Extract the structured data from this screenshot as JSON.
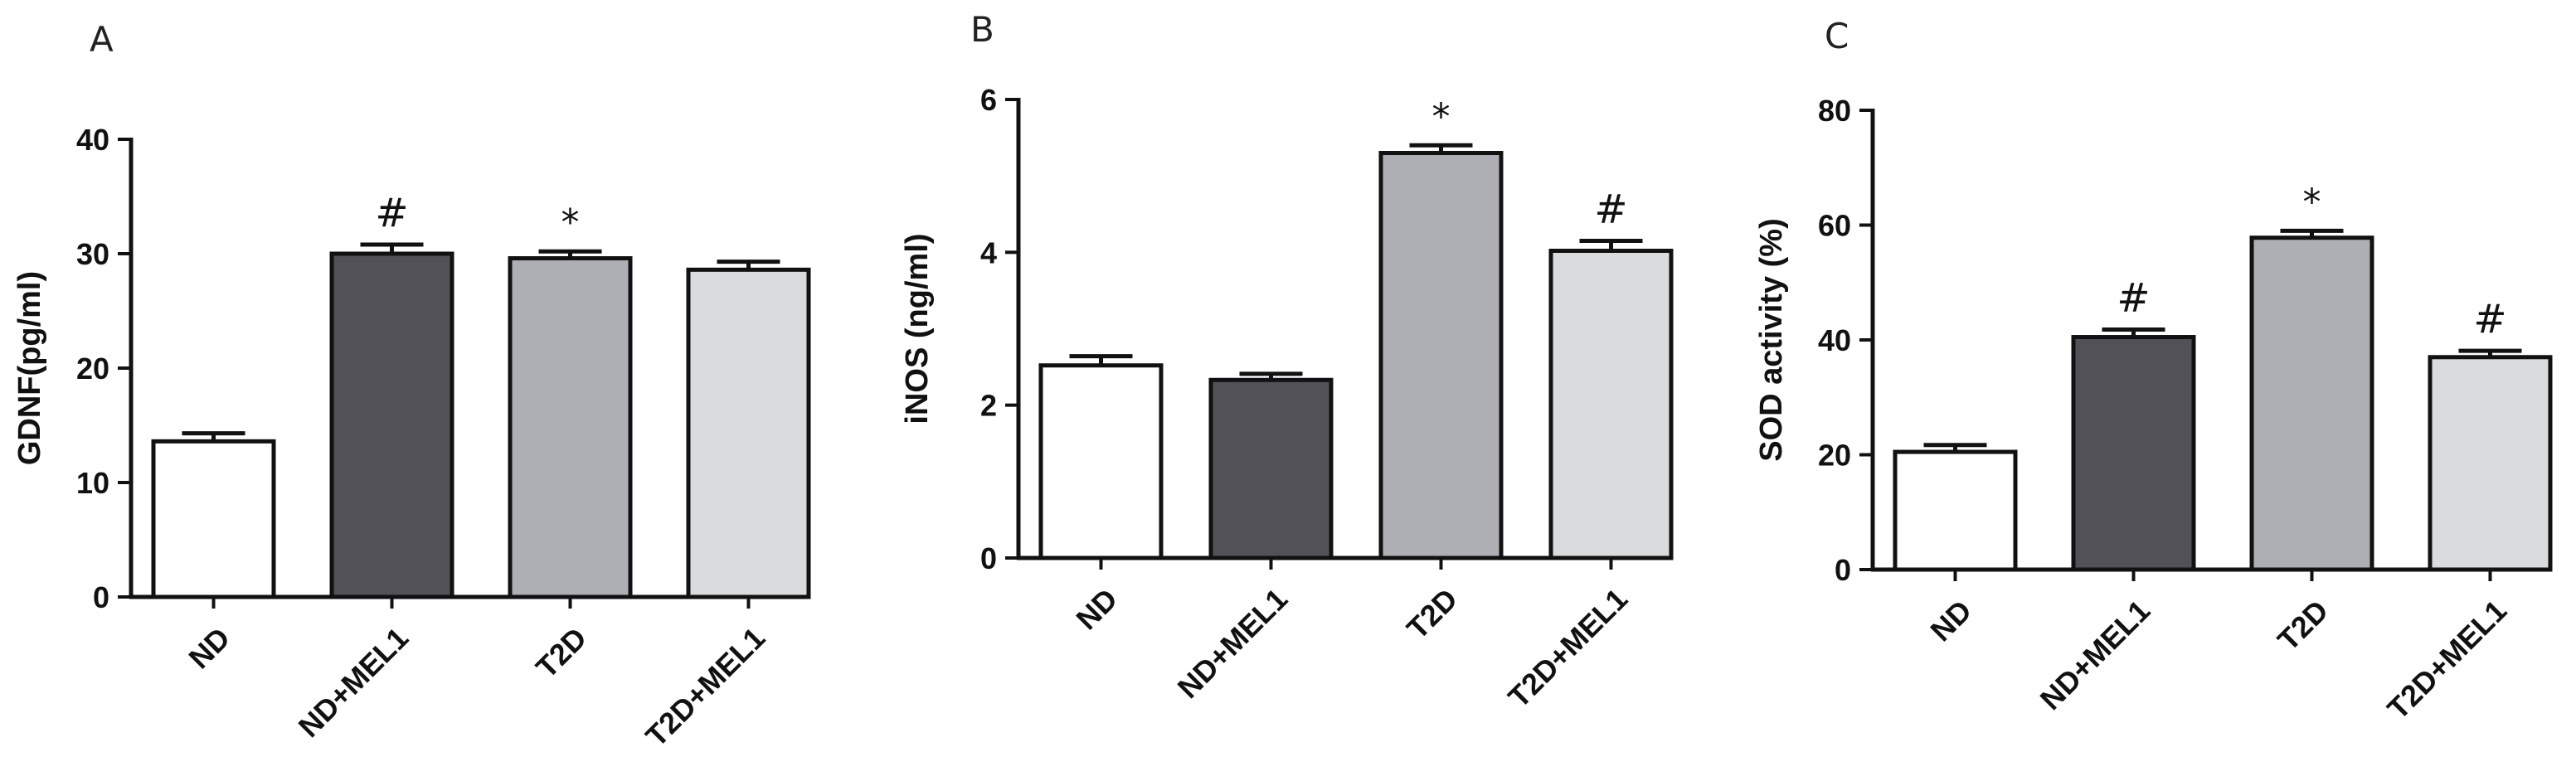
{
  "chart_data": [
    {
      "type": "bar",
      "panel": "A",
      "categories": [
        "ND",
        "ND+MEL1",
        "T2D",
        "T2D+MEL1"
      ],
      "values": [
        13.6,
        30.0,
        29.6,
        28.6
      ],
      "errors": [
        0.7,
        0.8,
        0.6,
        0.7
      ],
      "annotations": [
        "",
        "#",
        "*",
        ""
      ],
      "colors": [
        "#ffffff",
        "#525158",
        "#aeafb4",
        "#dadbdc"
      ],
      "ylabel": "GDNF(pg/ml)",
      "ylim": [
        0,
        40
      ],
      "yticks": [
        0,
        10,
        20,
        30,
        40
      ]
    },
    {
      "type": "bar",
      "panel": "B",
      "categories": [
        "ND",
        "ND+MEL1",
        "T2D",
        "T2D+MEL1"
      ],
      "values": [
        2.52,
        2.33,
        5.3,
        4.02
      ],
      "errors": [
        0.12,
        0.08,
        0.1,
        0.13
      ],
      "annotations": [
        "",
        "",
        "*",
        "#"
      ],
      "colors": [
        "#ffffff",
        "#525158",
        "#aeafb4",
        "#dadbdc"
      ],
      "ylabel": "iNOS (ng/ml)",
      "ylim": [
        0,
        6
      ],
      "yticks": [
        0,
        2,
        4,
        6
      ]
    },
    {
      "type": "bar",
      "panel": "C",
      "categories": [
        "ND",
        "ND+MEL1",
        "T2D",
        "T2D+MEL1"
      ],
      "values": [
        20.5,
        40.5,
        57.8,
        37.0
      ],
      "errors": [
        1.2,
        1.3,
        1.2,
        1.1
      ],
      "annotations": [
        "",
        "#",
        "*",
        "#"
      ],
      "colors": [
        "#ffffff",
        "#525158",
        "#aeafb4",
        "#dadbdc"
      ],
      "ylabel": "SOD activity (%)",
      "ylim": [
        0,
        80
      ],
      "yticks": [
        0,
        20,
        40,
        60,
        80
      ]
    }
  ]
}
